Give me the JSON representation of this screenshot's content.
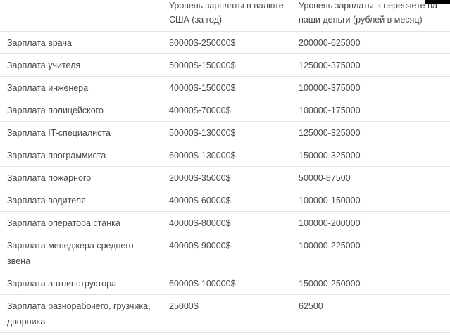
{
  "table": {
    "headers": [
      "",
      "Уровень зарплаты в валюте США (за год)",
      "Уровень зарплаты в пересчете на наши деньги (рублей в месяц)"
    ],
    "rows": [
      [
        "Зарплата врача",
        "80000$-250000$",
        "200000-625000"
      ],
      [
        "Зарплата учителя",
        "50000$-150000$",
        "125000-375000"
      ],
      [
        "Зарплата инженера",
        "40000$-150000$",
        "100000-375000"
      ],
      [
        "Зарплата полицейского",
        "40000$-70000$",
        "100000-175000"
      ],
      [
        "Зарплата IT-специалиста",
        "50000$-130000$",
        "125000-325000"
      ],
      [
        "Зарплата программиста",
        "60000$-130000$",
        "150000-325000"
      ],
      [
        "Зарплата пожарного",
        "20000$-35000$",
        "50000-87500"
      ],
      [
        "Зарплата водителя",
        "40000$-60000$",
        "100000-150000"
      ],
      [
        "Зарплата оператора станка",
        "40000$-80000$",
        "100000-200000"
      ],
      [
        "Зарплата  менеджера среднего звена",
        "40000$-90000$",
        "100000-225000"
      ],
      [
        "Зарплата  автоинструктора",
        "60000$-100000$",
        "150000-250000"
      ],
      [
        "Зарплата разнорабочего, грузчика, дворника",
        "25000$",
        "62500"
      ]
    ]
  }
}
